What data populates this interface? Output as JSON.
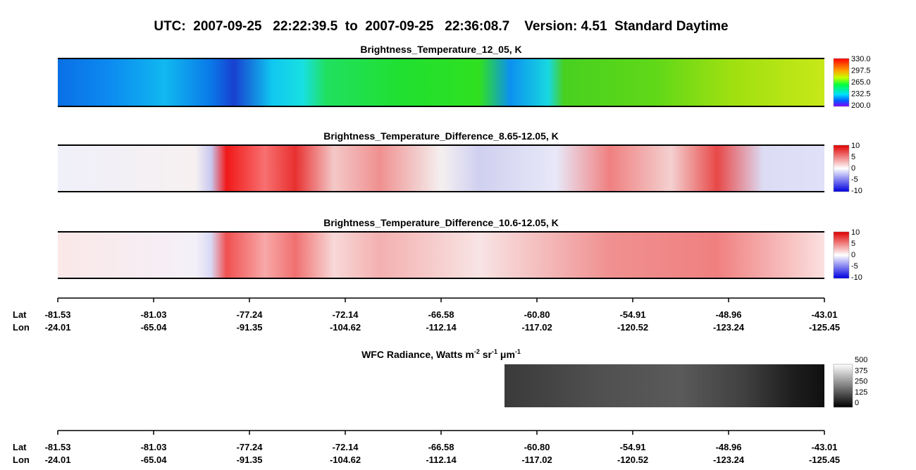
{
  "header": {
    "title": "UTC:  2007-09-25   22:22:39.5  to  2007-09-25   22:36:08.7    Version: 4.51  Standard Daytime"
  },
  "panels": [
    {
      "title": "Brightness_Temperature_12_05, K",
      "colorbar": [
        "330.0",
        "297.5",
        "265.0",
        "232.5",
        "200.0"
      ]
    },
    {
      "title": "Brightness_Temperature_Difference_8.65-12.05, K",
      "colorbar": [
        "10",
        "5",
        "0",
        "-5",
        "-10"
      ]
    },
    {
      "title": "Brightness_Temperature_Difference_10.6-12.05, K",
      "colorbar": [
        "10",
        "5",
        "0",
        "-5",
        "-10"
      ]
    }
  ],
  "axes": [
    {
      "rows": [
        "Lat",
        "Lon"
      ],
      "lat": [
        "-81.53",
        "-81.03",
        "-77.24",
        "-72.14",
        "-66.58",
        "-60.80",
        "-54.91",
        "-48.96",
        "-43.01"
      ],
      "lon": [
        "-24.01",
        "-65.04",
        "-91.35",
        "-104.62",
        "-112.14",
        "-117.02",
        "-120.52",
        "-123.24",
        "-125.45"
      ]
    },
    {
      "rows": [
        "Lat",
        "Lon"
      ],
      "lat": [
        "-81.53",
        "-81.03",
        "-77.24",
        "-72.14",
        "-66.58",
        "-60.80",
        "-54.91",
        "-48.96",
        "-43.01"
      ],
      "lon": [
        "-24.01",
        "-65.04",
        "-91.35",
        "-104.62",
        "-112.14",
        "-117.02",
        "-120.52",
        "-123.24",
        "-125.45"
      ]
    }
  ],
  "wfc": {
    "title": [
      "WFC Radiance, Watts m",
      "-2",
      " sr",
      "-1",
      " μm",
      "-1"
    ],
    "colorbar": [
      "500",
      "375",
      "250",
      "125",
      "0"
    ]
  }
}
